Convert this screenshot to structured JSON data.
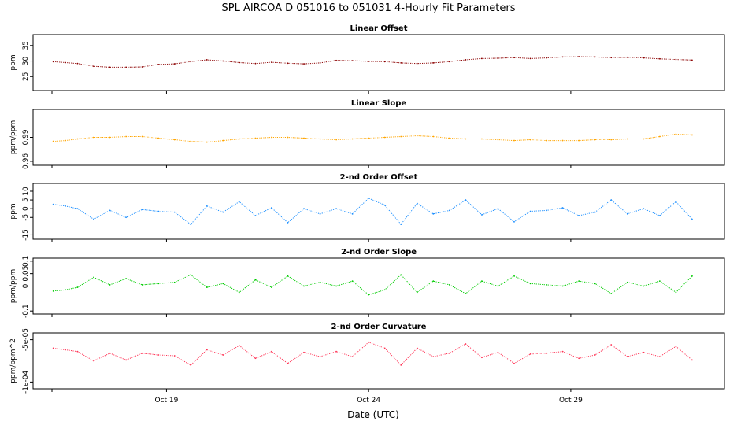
{
  "figure": {
    "title": "SPL   AIRCOA D   051016 to 051031   4-Hourly Fit Parameters",
    "xlabel": "Date (UTC)",
    "xticks": [
      {
        "label": "Oct 19",
        "value": 19
      },
      {
        "label": "Oct 24",
        "value": 24
      },
      {
        "label": "Oct 29",
        "value": 29
      }
    ]
  },
  "chart_data": [
    {
      "type": "line",
      "title": "Linear Offset",
      "ylabel": "ppm",
      "color": "#8b0000",
      "xlim": [
        15.7,
        32.8
      ],
      "ylim": [
        20.5,
        38.5
      ],
      "yticks": [
        25,
        30,
        35
      ],
      "x": [
        16.2,
        16.5,
        16.8,
        17.2,
        17.6,
        18.0,
        18.4,
        18.8,
        19.2,
        19.6,
        20.0,
        20.4,
        20.8,
        21.2,
        21.6,
        22.0,
        22.4,
        22.8,
        23.2,
        23.6,
        24.0,
        24.4,
        24.8,
        25.2,
        25.6,
        26.0,
        26.4,
        26.8,
        27.2,
        27.6,
        28.0,
        28.4,
        28.8,
        29.2,
        29.6,
        30.0,
        30.4,
        30.8,
        31.2,
        31.6,
        32.0
      ],
      "y": [
        29.8,
        29.5,
        29.2,
        28.3,
        28.0,
        28.0,
        28.1,
        28.9,
        29.1,
        29.8,
        30.4,
        30.0,
        29.5,
        29.2,
        29.6,
        29.3,
        29.1,
        29.4,
        30.2,
        30.1,
        29.9,
        29.8,
        29.4,
        29.2,
        29.4,
        29.8,
        30.4,
        30.8,
        30.9,
        31.1,
        30.8,
        31.0,
        31.3,
        31.4,
        31.3,
        31.1,
        31.2,
        31.0,
        30.7,
        30.5,
        30.3
      ]
    },
    {
      "type": "line",
      "title": "Linear Slope",
      "ylabel": "ppm/ppm",
      "color": "#ffa500",
      "xlim": [
        15.7,
        32.8
      ],
      "ylim": [
        0.955,
        1.025
      ],
      "yticks": [
        0.96,
        0.99
      ],
      "x": [
        16.2,
        16.5,
        16.8,
        17.2,
        17.6,
        18.0,
        18.4,
        18.8,
        19.2,
        19.6,
        20.0,
        20.4,
        20.8,
        21.2,
        21.6,
        22.0,
        22.4,
        22.8,
        23.2,
        23.6,
        24.0,
        24.4,
        24.8,
        25.2,
        25.6,
        26.0,
        26.4,
        26.8,
        27.2,
        27.6,
        28.0,
        28.4,
        28.8,
        29.2,
        29.6,
        30.0,
        30.4,
        30.8,
        31.2,
        31.6,
        32.0
      ],
      "y": [
        0.985,
        0.986,
        0.988,
        0.99,
        0.99,
        0.991,
        0.991,
        0.989,
        0.987,
        0.985,
        0.984,
        0.986,
        0.988,
        0.989,
        0.99,
        0.99,
        0.989,
        0.988,
        0.987,
        0.988,
        0.989,
        0.99,
        0.991,
        0.992,
        0.991,
        0.989,
        0.988,
        0.988,
        0.987,
        0.986,
        0.987,
        0.986,
        0.986,
        0.986,
        0.987,
        0.987,
        0.988,
        0.988,
        0.991,
        0.994,
        0.993
      ]
    },
    {
      "type": "line",
      "title": "2-nd Order Offset",
      "ylabel": "ppm",
      "color": "#1e90ff",
      "xlim": [
        15.7,
        32.8
      ],
      "ylim": [
        -17.5,
        14.5
      ],
      "yticks": [
        -15,
        -5,
        0,
        5,
        10
      ],
      "x": [
        16.2,
        16.5,
        16.8,
        17.2,
        17.6,
        18.0,
        18.4,
        18.8,
        19.2,
        19.6,
        20.0,
        20.4,
        20.8,
        21.2,
        21.6,
        22.0,
        22.4,
        22.8,
        23.2,
        23.6,
        24.0,
        24.4,
        24.8,
        25.2,
        25.6,
        26.0,
        26.4,
        26.8,
        27.2,
        27.6,
        28.0,
        28.4,
        28.8,
        29.2,
        29.6,
        30.0,
        30.4,
        30.8,
        31.2,
        31.6,
        32.0
      ],
      "y": [
        2.5,
        1.5,
        0.0,
        -6.0,
        -1.0,
        -5.0,
        -0.5,
        -1.5,
        -2.0,
        -9.0,
        1.5,
        -2.0,
        4.0,
        -4.0,
        0.5,
        -8.0,
        0.0,
        -3.0,
        0.0,
        -3.0,
        6.0,
        2.0,
        -9.0,
        3.0,
        -3.0,
        -1.0,
        5.0,
        -3.5,
        0.0,
        -7.5,
        -1.5,
        -1.0,
        0.5,
        -4.0,
        -2.0,
        5.0,
        -3.0,
        0.0,
        -4.0,
        4.0,
        -6.0
      ]
    },
    {
      "type": "line",
      "title": "2-nd Order Slope",
      "ylabel": "ppm/ppm",
      "color": "#00cc00",
      "xlim": [
        15.7,
        32.8
      ],
      "ylim": [
        -0.112,
        0.112
      ],
      "yticks": [
        -0.1,
        0.0,
        0.05,
        0.1
      ],
      "x": [
        16.2,
        16.5,
        16.8,
        17.2,
        17.6,
        18.0,
        18.4,
        18.8,
        19.2,
        19.6,
        20.0,
        20.4,
        20.8,
        21.2,
        21.6,
        22.0,
        22.4,
        22.8,
        23.2,
        23.6,
        24.0,
        24.4,
        24.8,
        25.2,
        25.6,
        26.0,
        26.4,
        26.8,
        27.2,
        27.6,
        28.0,
        28.4,
        28.8,
        29.2,
        29.6,
        30.0,
        30.4,
        30.8,
        31.2,
        31.6,
        32.0
      ],
      "y": [
        -0.02,
        -0.015,
        -0.005,
        0.035,
        0.005,
        0.03,
        0.005,
        0.01,
        0.015,
        0.045,
        -0.005,
        0.01,
        -0.025,
        0.025,
        -0.005,
        0.04,
        0.0,
        0.015,
        0.0,
        0.02,
        -0.035,
        -0.015,
        0.045,
        -0.025,
        0.02,
        0.005,
        -0.03,
        0.02,
        0.0,
        0.04,
        0.01,
        0.005,
        0.0,
        0.02,
        0.01,
        -0.03,
        0.015,
        0.0,
        0.02,
        -0.025,
        0.04
      ]
    },
    {
      "type": "line",
      "title": "2-nd Order Curvature",
      "ylabel": "ppm/ppm^2",
      "color": "#ff3355",
      "xlim": [
        15.7,
        32.8
      ],
      "ylim": [
        -0.000108,
        -4.2e-05
      ],
      "yticks": [
        -0.0001,
        -5e-05
      ],
      "ytick_labels": [
        "-1e-04",
        "-5e-05"
      ],
      "x": [
        16.2,
        16.5,
        16.8,
        17.2,
        17.6,
        18.0,
        18.4,
        18.8,
        19.2,
        19.6,
        20.0,
        20.4,
        20.8,
        21.2,
        21.6,
        22.0,
        22.4,
        22.8,
        23.2,
        23.6,
        24.0,
        24.4,
        24.8,
        25.2,
        25.6,
        26.0,
        26.4,
        26.8,
        27.2,
        27.6,
        28.0,
        28.4,
        28.8,
        29.2,
        29.6,
        30.0,
        30.4,
        30.8,
        31.2,
        31.6,
        32.0
      ],
      "y": [
        -6e-05,
        -6.2e-05,
        -6.4e-05,
        -7.5e-05,
        -6.6e-05,
        -7.4e-05,
        -6.6e-05,
        -6.8e-05,
        -6.9e-05,
        -8e-05,
        -6.2e-05,
        -6.8e-05,
        -5.7e-05,
        -7.2e-05,
        -6.4e-05,
        -7.8e-05,
        -6.5e-05,
        -7e-05,
        -6.4e-05,
        -7e-05,
        -5.3e-05,
        -6e-05,
        -8e-05,
        -6e-05,
        -7e-05,
        -6.6e-05,
        -5.5e-05,
        -7.1e-05,
        -6.5e-05,
        -7.8e-05,
        -6.7e-05,
        -6.6e-05,
        -6.4e-05,
        -7.2e-05,
        -6.8e-05,
        -5.6e-05,
        -7e-05,
        -6.5e-05,
        -7e-05,
        -5.8e-05,
        -7.4e-05
      ]
    }
  ]
}
